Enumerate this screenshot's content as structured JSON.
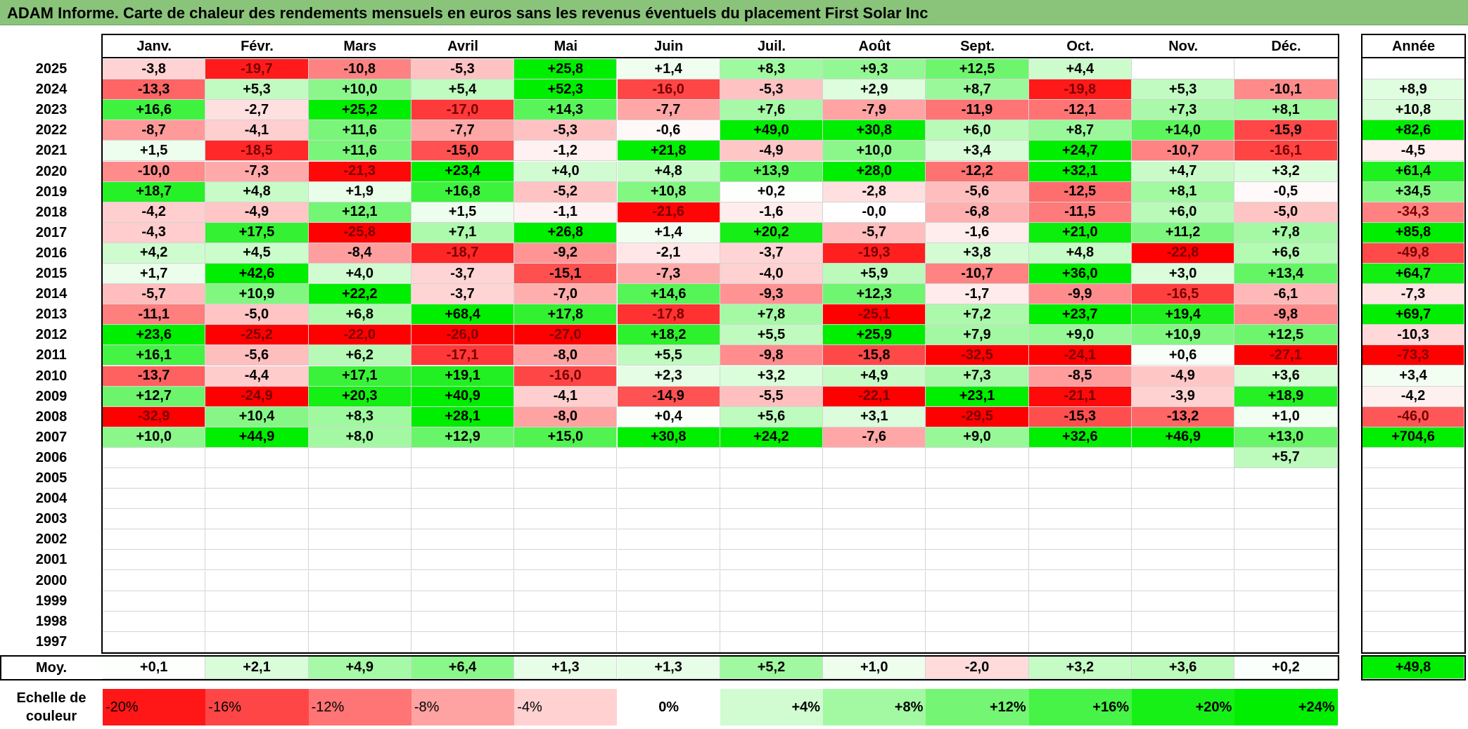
{
  "title": "ADAM Informe. Carte de chaleur des rendements mensuels en euros sans les revenus éventuels du placement First Solar Inc",
  "chart_data": {
    "type": "heatmap",
    "title": "ADAM Informe. Carte de chaleur des rendements mensuels en euros sans les revenus éventuels du placement First Solar Inc",
    "columns": [
      "Janv.",
      "Févr.",
      "Mars",
      "Avril",
      "Mai",
      "Juin",
      "Juil.",
      "Août",
      "Sept.",
      "Oct.",
      "Nov.",
      "Déc."
    ],
    "year_column_label": "Année",
    "rows": [
      {
        "year": "2025",
        "values": [
          "-3,8",
          "-19,7",
          "-10,8",
          "-5,3",
          "+25,8",
          "+1,4",
          "+8,3",
          "+9,3",
          "+12,5",
          "+4,4",
          "",
          ""
        ],
        "annual": ""
      },
      {
        "year": "2024",
        "values": [
          "-13,3",
          "+5,3",
          "+10,0",
          "+5,4",
          "+52,3",
          "-16,0",
          "-5,3",
          "+2,9",
          "+8,7",
          "-19,8",
          "+5,3",
          "-10,1"
        ],
        "annual": "+8,9"
      },
      {
        "year": "2023",
        "values": [
          "+16,6",
          "-2,7",
          "+25,2",
          "-17,0",
          "+14,3",
          "-7,7",
          "+7,6",
          "-7,9",
          "-11,9",
          "-12,1",
          "+7,3",
          "+8,1"
        ],
        "annual": "+10,8"
      },
      {
        "year": "2022",
        "values": [
          "-8,7",
          "-4,1",
          "+11,6",
          "-7,7",
          "-5,3",
          "-0,6",
          "+49,0",
          "+30,8",
          "+6,0",
          "+8,7",
          "+14,0",
          "-15,9"
        ],
        "annual": "+82,6"
      },
      {
        "year": "2021",
        "values": [
          "+1,5",
          "-18,5",
          "+11,6",
          "-15,0",
          "-1,2",
          "+21,8",
          "-4,9",
          "+10,0",
          "+3,4",
          "+24,7",
          "-10,7",
          "-16,1"
        ],
        "annual": "-4,5"
      },
      {
        "year": "2020",
        "values": [
          "-10,0",
          "-7,3",
          "-21,3",
          "+23,4",
          "+4,0",
          "+4,8",
          "+13,9",
          "+28,0",
          "-12,2",
          "+32,1",
          "+4,7",
          "+3,2"
        ],
        "annual": "+61,4"
      },
      {
        "year": "2019",
        "values": [
          "+18,7",
          "+4,8",
          "+1,9",
          "+16,8",
          "-5,2",
          "+10,8",
          "+0,2",
          "-2,8",
          "-5,6",
          "-12,5",
          "+8,1",
          "-0,5"
        ],
        "annual": "+34,5"
      },
      {
        "year": "2018",
        "values": [
          "-4,2",
          "-4,9",
          "+12,1",
          "+1,5",
          "-1,1",
          "-21,6",
          "-1,6",
          "-0,0",
          "-6,8",
          "-11,5",
          "+6,0",
          "-5,0"
        ],
        "annual": "-34,3"
      },
      {
        "year": "2017",
        "values": [
          "-4,3",
          "+17,5",
          "-25,8",
          "+7,1",
          "+26,8",
          "+1,4",
          "+20,2",
          "-5,7",
          "-1,6",
          "+21,0",
          "+11,2",
          "+7,8"
        ],
        "annual": "+85,8"
      },
      {
        "year": "2016",
        "values": [
          "+4,2",
          "+4,5",
          "-8,4",
          "-18,7",
          "-9,2",
          "-2,1",
          "-3,7",
          "-19,3",
          "+3,8",
          "+4,8",
          "-22,8",
          "+6,6"
        ],
        "annual": "-49,8"
      },
      {
        "year": "2015",
        "values": [
          "+1,7",
          "+42,6",
          "+4,0",
          "-3,7",
          "-15,1",
          "-7,3",
          "-4,0",
          "+5,9",
          "-10,7",
          "+36,0",
          "+3,0",
          "+13,4"
        ],
        "annual": "+64,7"
      },
      {
        "year": "2014",
        "values": [
          "-5,7",
          "+10,9",
          "+22,2",
          "-3,7",
          "-7,0",
          "+14,6",
          "-9,3",
          "+12,3",
          "-1,7",
          "-9,9",
          "-16,5",
          "-6,1"
        ],
        "annual": "-7,3"
      },
      {
        "year": "2013",
        "values": [
          "-11,1",
          "-5,0",
          "+6,8",
          "+68,4",
          "+17,8",
          "-17,8",
          "+7,8",
          "-25,1",
          "+7,2",
          "+23,7",
          "+19,4",
          "-9,8"
        ],
        "annual": "+69,7"
      },
      {
        "year": "2012",
        "values": [
          "+23,6",
          "-25,2",
          "-22,0",
          "-26,0",
          "-27,0",
          "+18,2",
          "+5,5",
          "+25,9",
          "+7,9",
          "+9,0",
          "+10,9",
          "+12,5"
        ],
        "annual": "-10,3"
      },
      {
        "year": "2011",
        "values": [
          "+16,1",
          "-5,6",
          "+6,2",
          "-17,1",
          "-8,0",
          "+5,5",
          "-9,8",
          "-15,8",
          "-32,5",
          "-24,1",
          "+0,6",
          "-27,1"
        ],
        "annual": "-73,3"
      },
      {
        "year": "2010",
        "values": [
          "-13,7",
          "-4,4",
          "+17,1",
          "+19,1",
          "-16,0",
          "+2,3",
          "+3,2",
          "+4,9",
          "+7,3",
          "-8,5",
          "-4,9",
          "+3,6"
        ],
        "annual": "+3,4"
      },
      {
        "year": "2009",
        "values": [
          "+12,7",
          "-24,9",
          "+20,3",
          "+40,9",
          "-4,1",
          "-14,9",
          "-5,5",
          "-22,1",
          "+23,1",
          "-21,1",
          "-3,9",
          "+18,9"
        ],
        "annual": "-4,2"
      },
      {
        "year": "2008",
        "values": [
          "-32,9",
          "+10,4",
          "+8,3",
          "+28,1",
          "-8,0",
          "+0,4",
          "+5,6",
          "+3,1",
          "-29,5",
          "-15,3",
          "-13,2",
          "+1,0"
        ],
        "annual": "-46,0"
      },
      {
        "year": "2007",
        "values": [
          "+10,0",
          "+44,9",
          "+8,0",
          "+12,9",
          "+15,0",
          "+30,8",
          "+24,2",
          "-7,6",
          "+9,0",
          "+32,6",
          "+46,9",
          "+13,0"
        ],
        "annual": "+704,6"
      },
      {
        "year": "2006",
        "values": [
          "",
          "",
          "",
          "",
          "",
          "",
          "",
          "",
          "",
          "",
          "",
          "+5,7"
        ],
        "annual": ""
      },
      {
        "year": "2005",
        "values": [
          "",
          "",
          "",
          "",
          "",
          "",
          "",
          "",
          "",
          "",
          "",
          ""
        ],
        "annual": ""
      },
      {
        "year": "2004",
        "values": [
          "",
          "",
          "",
          "",
          "",
          "",
          "",
          "",
          "",
          "",
          "",
          ""
        ],
        "annual": ""
      },
      {
        "year": "2003",
        "values": [
          "",
          "",
          "",
          "",
          "",
          "",
          "",
          "",
          "",
          "",
          "",
          ""
        ],
        "annual": ""
      },
      {
        "year": "2002",
        "values": [
          "",
          "",
          "",
          "",
          "",
          "",
          "",
          "",
          "",
          "",
          "",
          ""
        ],
        "annual": ""
      },
      {
        "year": "2001",
        "values": [
          "",
          "",
          "",
          "",
          "",
          "",
          "",
          "",
          "",
          "",
          "",
          ""
        ],
        "annual": ""
      },
      {
        "year": "2000",
        "values": [
          "",
          "",
          "",
          "",
          "",
          "",
          "",
          "",
          "",
          "",
          "",
          ""
        ],
        "annual": ""
      },
      {
        "year": "1999",
        "values": [
          "",
          "",
          "",
          "",
          "",
          "",
          "",
          "",
          "",
          "",
          "",
          ""
        ],
        "annual": ""
      },
      {
        "year": "1998",
        "values": [
          "",
          "",
          "",
          "",
          "",
          "",
          "",
          "",
          "",
          "",
          "",
          ""
        ],
        "annual": ""
      },
      {
        "year": "1997",
        "values": [
          "",
          "",
          "",
          "",
          "",
          "",
          "",
          "",
          "",
          "",
          "",
          ""
        ],
        "annual": ""
      }
    ],
    "average": {
      "label": "Moy.",
      "values": [
        "+0,1",
        "+2,1",
        "+4,9",
        "+6,4",
        "+1,3",
        "+1,3",
        "+5,2",
        "+1,0",
        "-2,0",
        "+3,2",
        "+3,6",
        "+0,2"
      ],
      "annual": "+49,8"
    },
    "scale": {
      "label": "Echelle de couleur",
      "steps": [
        "-20%",
        "-16%",
        "-12%",
        "-8%",
        "-4%",
        "0%",
        "+4%",
        "+8%",
        "+12%",
        "+16%",
        "+20%",
        "+24%"
      ]
    },
    "colors": {
      "negative": "#ff0000",
      "neutral": "#ffffff",
      "positive": "#00ee00",
      "title_bar": "#8ac47a"
    }
  }
}
